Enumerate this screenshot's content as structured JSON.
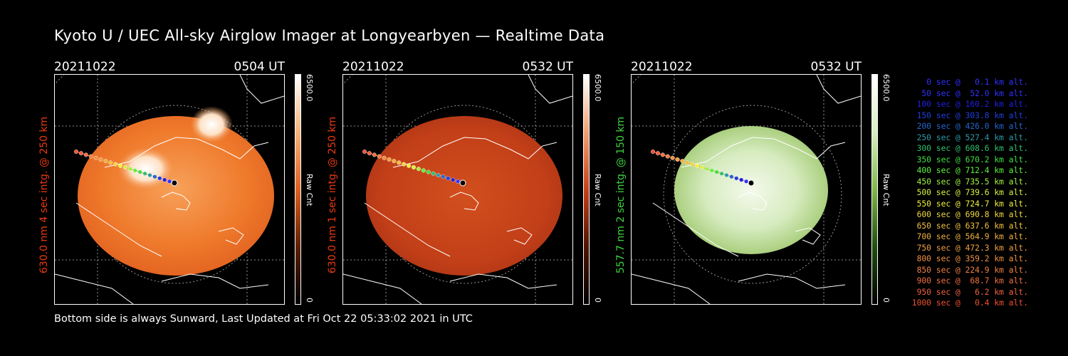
{
  "title": "Kyoto U / UEC All-sky Airglow Imager at Longyearbyen — Realtime Data",
  "footer": "Bottom side is always Sunward, Last Updated at Fri Oct 22 05:33:02 2021 in UTC",
  "panels": [
    {
      "date": "20211022",
      "time": "0504 UT",
      "ylabel": "630.0 nm 4 sec intg. @ 250 km",
      "label_color": "#e83a10",
      "colorbar_max": "6500.0",
      "colorbar_min": "0",
      "colorbar_label": "Raw Cnt",
      "theme": "red-orange",
      "colors": [
        "#f07a2a",
        "#e06522"
      ]
    },
    {
      "date": "20211022",
      "time": "0532 UT",
      "ylabel": "630.0 nm 1 sec intg. @ 250 km",
      "label_color": "#e83a10",
      "colorbar_max": "6500.0",
      "colorbar_min": "0",
      "colorbar_label": "Raw Cnt",
      "theme": "red",
      "colors": [
        "#c8451a",
        "#a83514"
      ]
    },
    {
      "date": "20211022",
      "time": "0532 UT",
      "ylabel": "557.7 nm 2 sec intg. @ 150 km",
      "label_color": "#3fd23f",
      "colorbar_max": "6500.0",
      "colorbar_min": "0",
      "colorbar_label": "Raw Cnt",
      "theme": "green",
      "colors": [
        "#c9e2a6",
        "#9cc46e"
      ]
    }
  ],
  "legend": [
    {
      "text": "0 sec @   0.1 km alt.",
      "color": "#3030ff"
    },
    {
      "text": "50 sec @  52.0 km alt.",
      "color": "#3030ff"
    },
    {
      "text": "100 sec @ 160.2 km alt.",
      "color": "#2020e0"
    },
    {
      "text": "150 sec @ 303.8 km alt.",
      "color": "#1e3ee0"
    },
    {
      "text": "200 sec @ 426.0 km alt.",
      "color": "#2266d0"
    },
    {
      "text": "250 sec @ 527.4 km alt.",
      "color": "#2a9aa8"
    },
    {
      "text": "300 sec @ 608.6 km alt.",
      "color": "#30c070"
    },
    {
      "text": "350 sec @ 670.2 km alt.",
      "color": "#40e040"
    },
    {
      "text": "400 sec @ 712.4 km alt.",
      "color": "#60f040"
    },
    {
      "text": "450 sec @ 735.5 km alt.",
      "color": "#a0f040"
    },
    {
      "text": "500 sec @ 739.6 km alt.",
      "color": "#d8f040"
    },
    {
      "text": "550 sec @ 724.7 km alt.",
      "color": "#f0f040"
    },
    {
      "text": "600 sec @ 690.8 km alt.",
      "color": "#f0d840"
    },
    {
      "text": "650 sec @ 637.6 km alt.",
      "color": "#f0c040"
    },
    {
      "text": "700 sec @ 564.9 km alt.",
      "color": "#f0b040"
    },
    {
      "text": "750 sec @ 472.3 km alt.",
      "color": "#f0a040"
    },
    {
      "text": "800 sec @ 359.2 km alt.",
      "color": "#f09040"
    },
    {
      "text": "850 sec @ 224.9 km alt.",
      "color": "#f08040"
    },
    {
      "text": "900 sec @  68.7 km alt.",
      "color": "#f07040"
    },
    {
      "text": "950 sec @   6.2 km alt.",
      "color": "#f06040"
    },
    {
      "text": "1000 sec @   0.4 km alt.",
      "color": "#f05030"
    }
  ]
}
